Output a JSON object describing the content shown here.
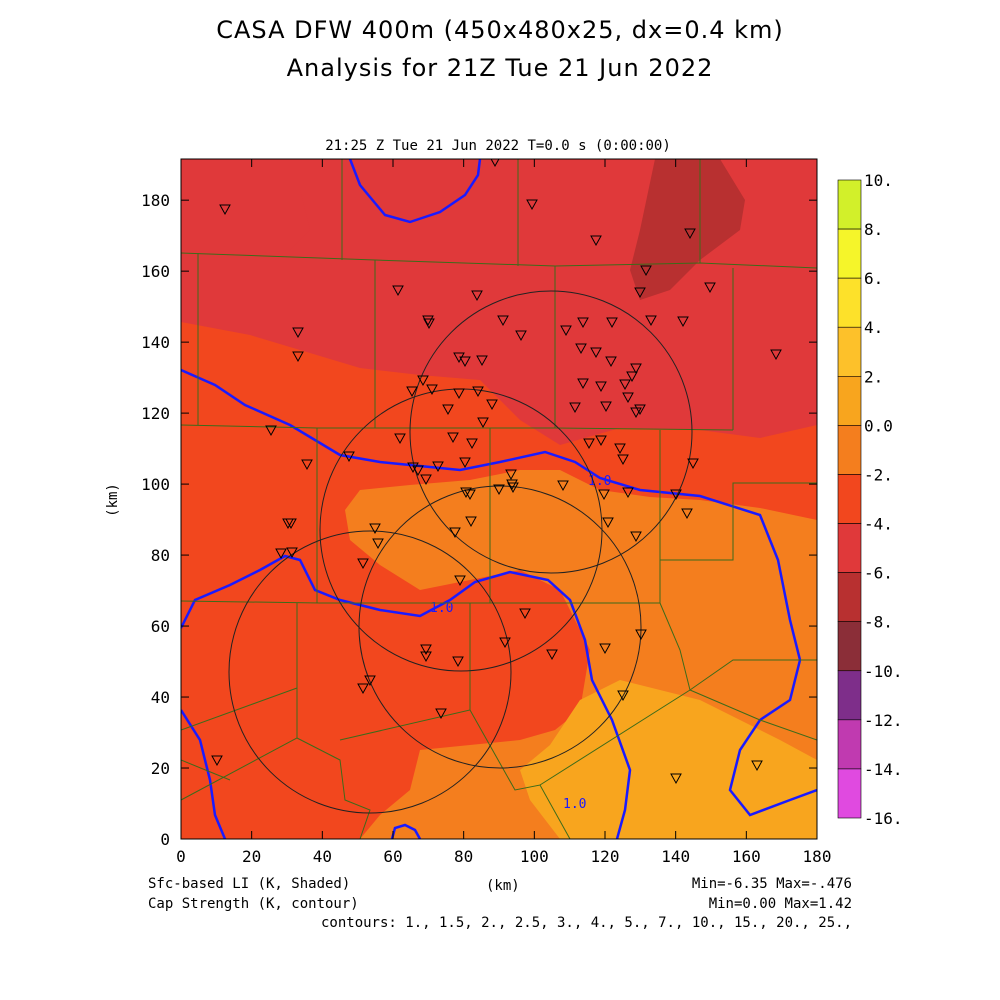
{
  "title": {
    "line1": "CASA DFW 400m (450x480x25, dx=0.4 km)",
    "line2": "Analysis for 21Z Tue 21 Jun 2022"
  },
  "plot": {
    "subtitle": "21:25 Z Tue 21 Jun 2022   T=0.0 s (0:00:00)",
    "xlabel": "(km)",
    "ylabel": "(km)",
    "x_ticks": [
      "0",
      "20",
      "40",
      "60",
      "80",
      "100",
      "120",
      "140",
      "160",
      "180"
    ],
    "y_ticks": [
      "0",
      "20",
      "40",
      "60",
      "80",
      "100",
      "120",
      "140",
      "160",
      "180"
    ],
    "contour_labels": [
      "1.0",
      "1.0",
      "1.0"
    ]
  },
  "colorbar": {
    "labels": [
      "10.",
      "8.",
      "6.",
      "4.",
      "2.",
      "0.0",
      "-2.",
      "-4.",
      "-6.",
      "-8.",
      "-10.",
      "-12.",
      "-14.",
      "-16."
    ],
    "colors": [
      "#a6e22a",
      "#d2f02a",
      "#f5f52a",
      "#fde12a",
      "#fdc12a",
      "#f8a51e",
      "#f47e1e",
      "#f2471e",
      "#e0393a",
      "#b83030",
      "#8b2e38",
      "#7e2e8a",
      "#c03ab0",
      "#e04ae0"
    ]
  },
  "footer": {
    "shaded_label": "Sfc-based LI (K, Shaded)",
    "contour_label": "Cap Strength (K, contour)",
    "xunit": "(km)",
    "minmax_shaded": "Min=-6.35 Max=-.476",
    "minmax_contour": "Min=0.00 Max=1.42",
    "contours": "contours: 1., 1.5, 2., 2.5, 3., 4., 5., 7., 10., 15., 20., 25.,"
  }
}
